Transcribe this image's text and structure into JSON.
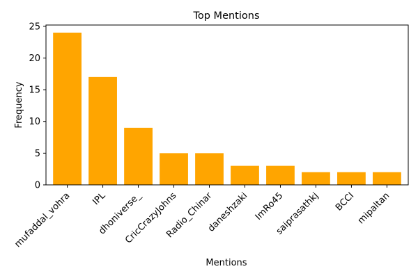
{
  "chart_data": {
    "type": "bar",
    "title": "Top Mentions",
    "xlabel": "Mentions",
    "ylabel": "Frequency",
    "categories": [
      "mufaddal_vohra",
      "IPL",
      "dhoniverse_",
      "CricCrazyJohns",
      "Radio_Chinar",
      "daneshzaki",
      "ImRo45",
      "saiprasathkj",
      "BCCI",
      "mipaltan"
    ],
    "values": [
      24,
      17,
      9,
      5,
      5,
      3,
      3,
      2,
      2,
      2
    ],
    "ylim": [
      0,
      25.2
    ],
    "yticks": [
      "0",
      "5",
      "10",
      "15",
      "20",
      "25"
    ],
    "bar_color": "#FFA500",
    "grid": false,
    "legend": false
  }
}
